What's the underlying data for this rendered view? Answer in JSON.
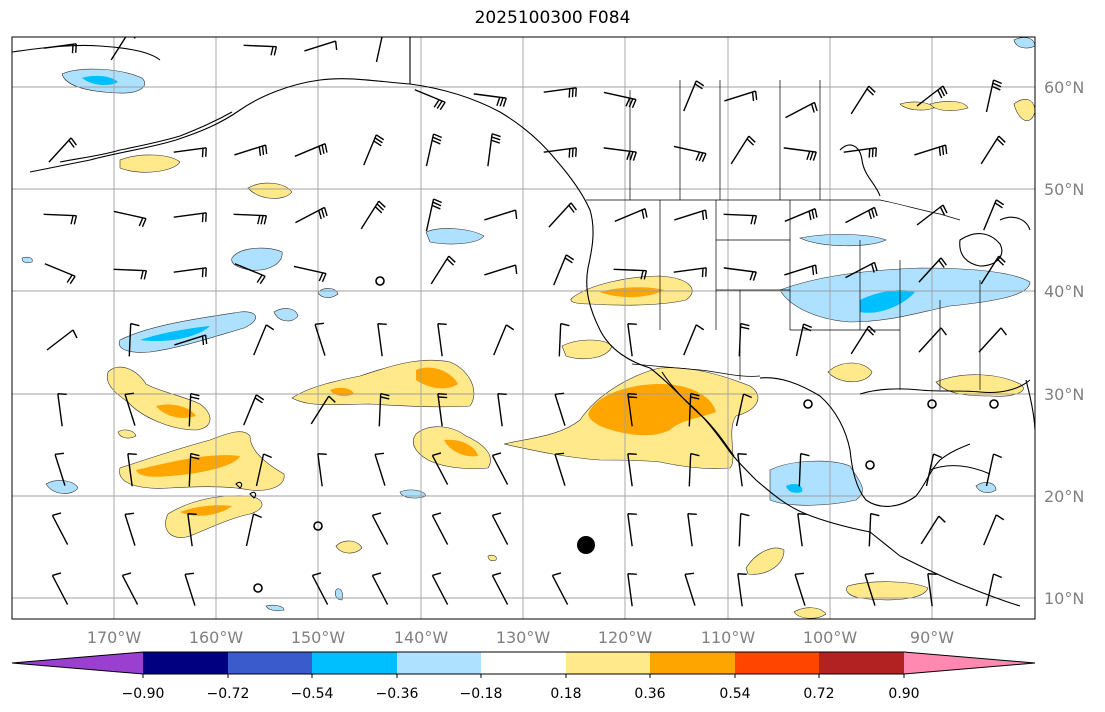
{
  "title": "2025100300 F084",
  "lon_ticks": [
    "170°W",
    "160°W",
    "150°W",
    "140°W",
    "130°W",
    "120°W",
    "110°W",
    "100°W",
    "90°W"
  ],
  "lat_ticks": [
    "60°N",
    "50°N",
    "40°N",
    "30°N",
    "20°N",
    "10°N"
  ],
  "colorbar": {
    "labels": [
      "−0.90",
      "−0.72",
      "−0.54",
      "−0.36",
      "−0.18",
      "0.18",
      "0.36",
      "0.54",
      "0.72",
      "0.90"
    ],
    "colors": [
      "#9b3fd1",
      "#000080",
      "#3a5bcc",
      "#00bfff",
      "#aee0ff",
      "#ffffff",
      "#ffe98a",
      "#ffa500",
      "#ff4500",
      "#b22222",
      "#ff89b0"
    ]
  },
  "colors": {
    "light_blue": "#aee0ff",
    "blue": "#00bfff",
    "light_yellow": "#ffe98a",
    "orange": "#ffa500",
    "grid": "#a0a0a0"
  }
}
